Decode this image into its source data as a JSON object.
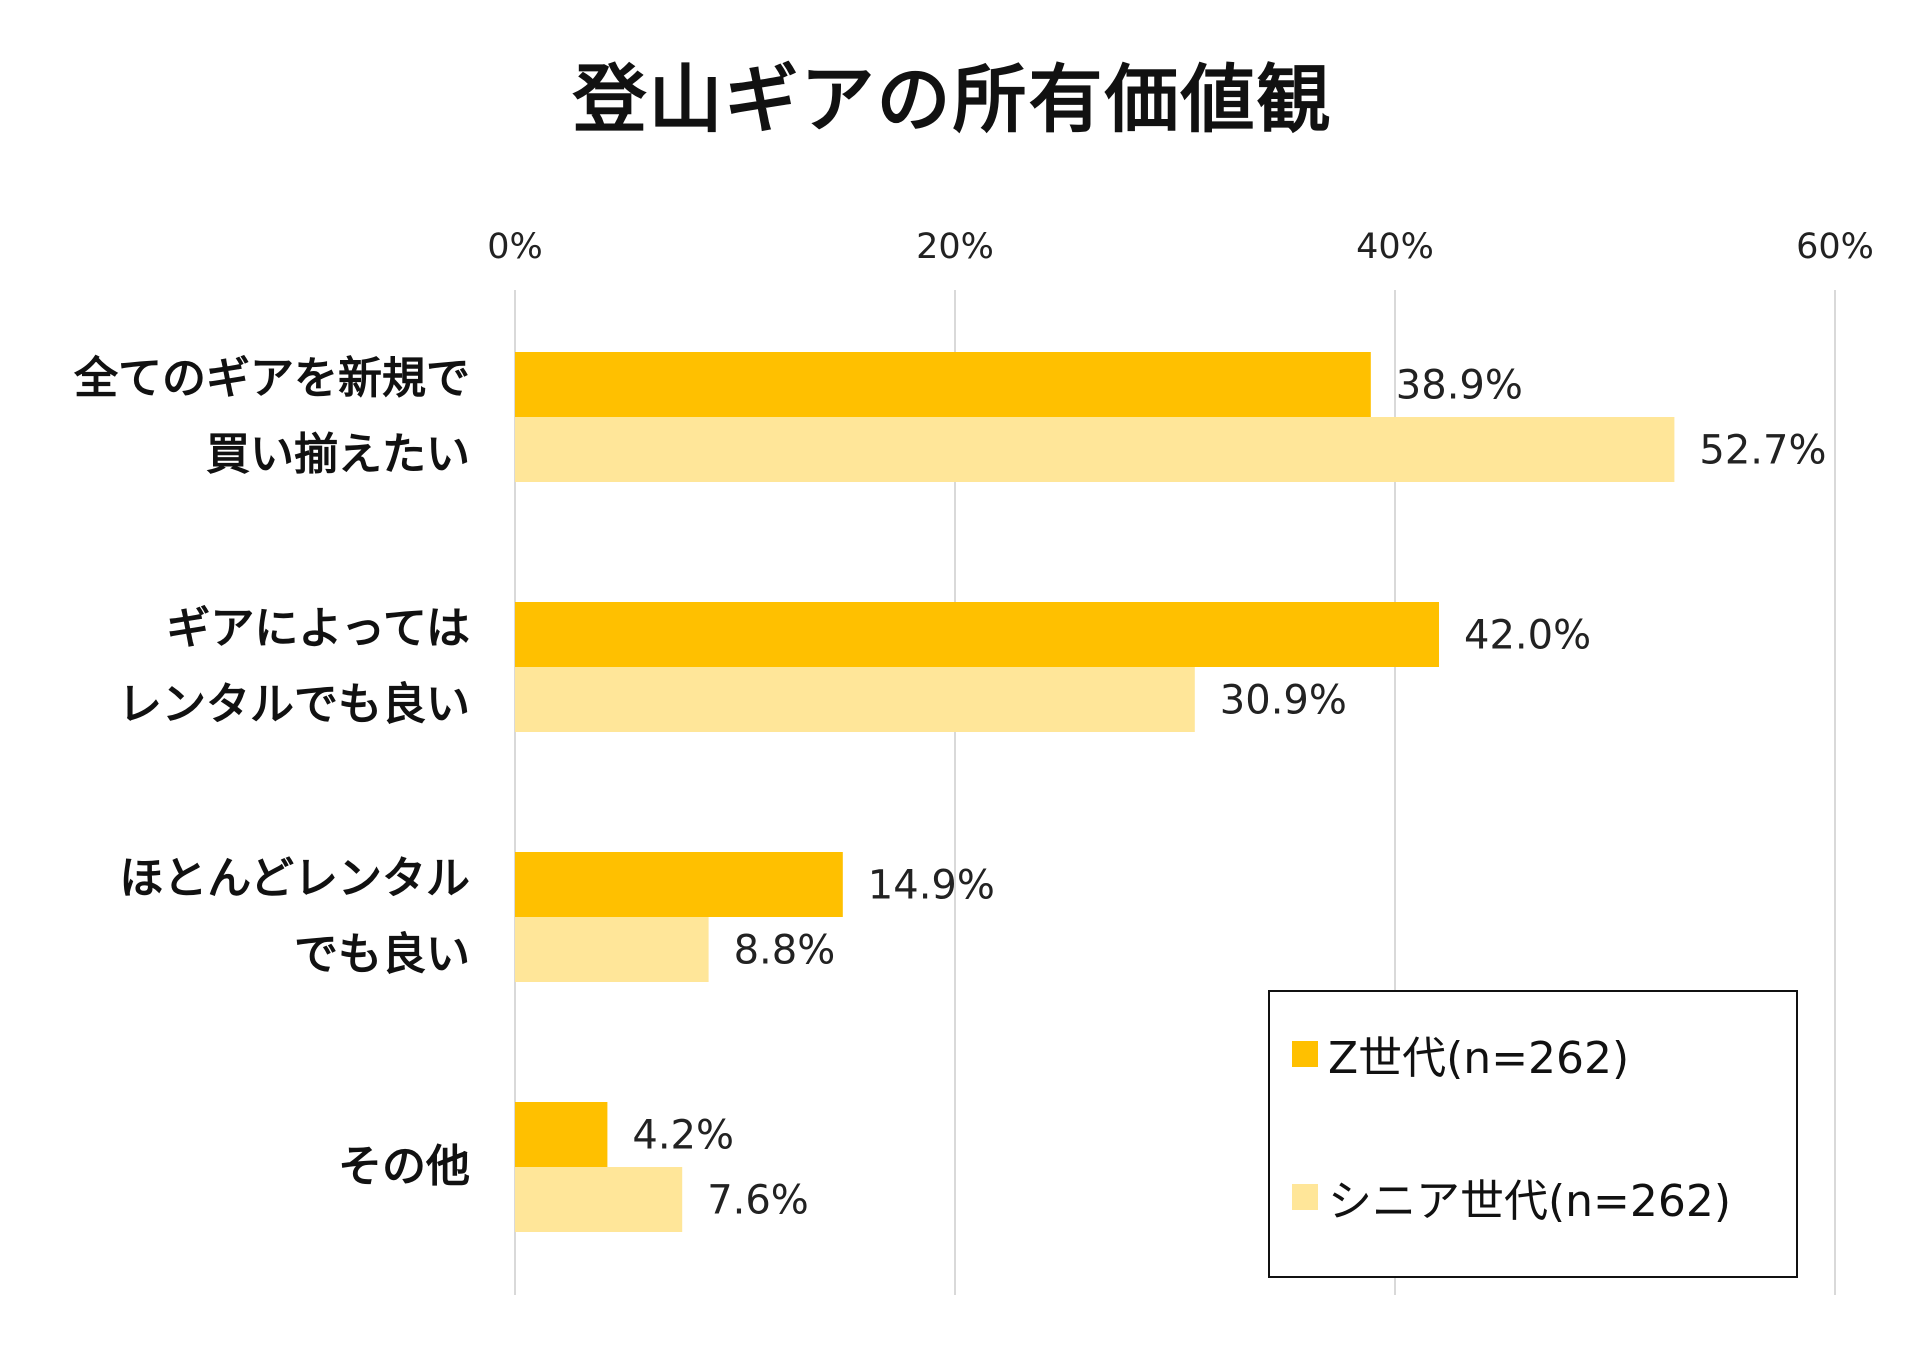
{
  "chart_data": {
    "type": "bar",
    "orientation": "horizontal",
    "title": "登山ギアの所有価値観",
    "categories": [
      "全てのギアを新規で\n買い揃えたい",
      "ギアによっては\nレンタルでも良い",
      "ほとんどレンタル\nでも良い",
      "その他"
    ],
    "series": [
      {
        "name": "Z世代(n=262)",
        "color": "#FFC000",
        "values": [
          38.9,
          42.0,
          14.9,
          4.2
        ],
        "labels": [
          "38.9%",
          "42.0%",
          "14.9%",
          "4.2%"
        ]
      },
      {
        "name": "シニア世代(n=262)",
        "color": "#FFE699",
        "values": [
          52.7,
          30.9,
          8.8,
          7.6
        ],
        "labels": [
          "52.7%",
          "30.9%",
          "8.8%",
          "7.6%"
        ]
      }
    ],
    "xlim": [
      0,
      60
    ],
    "xticks": [
      0,
      20,
      40,
      60
    ],
    "xtick_labels": [
      "0%",
      "20%",
      "40%",
      "60%"
    ],
    "grid": true,
    "legend_position": "bottom-right"
  }
}
